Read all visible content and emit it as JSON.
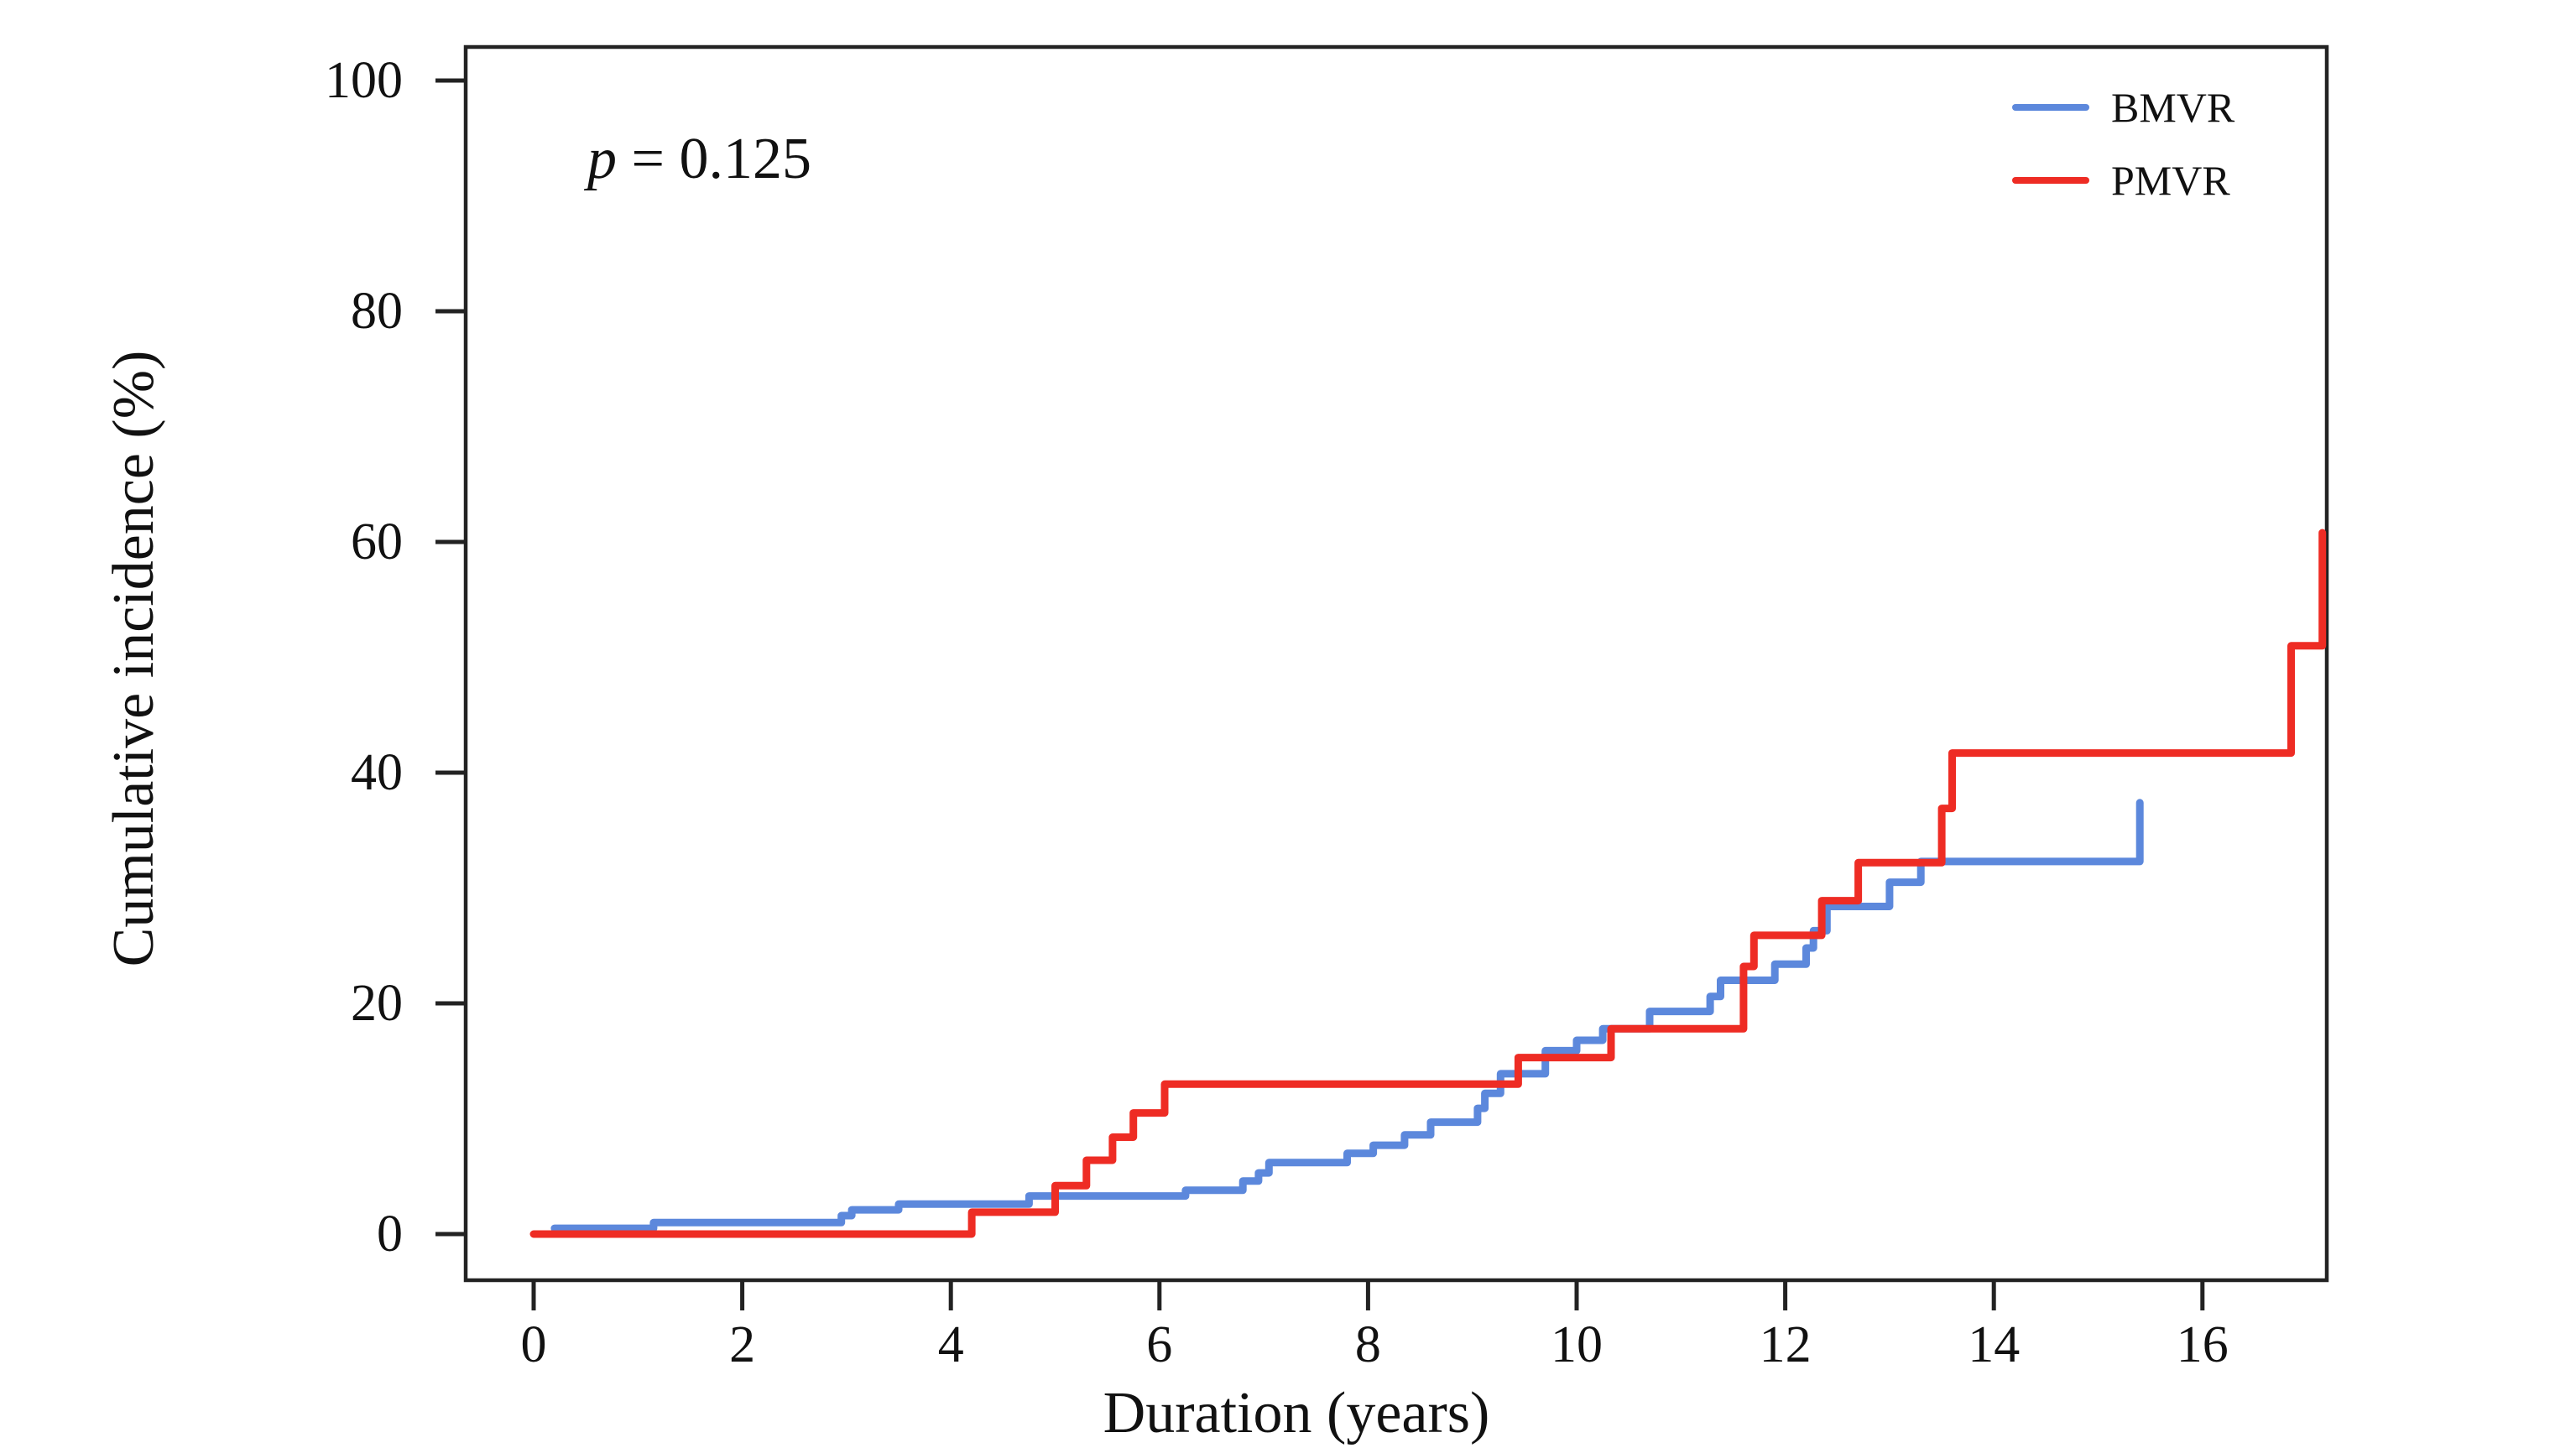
{
  "figure": {
    "annotation": {
      "symbol": "p",
      "rest": " = 0.125",
      "full": "p = 0.125"
    },
    "x_axis": {
      "label": "Duration (years)",
      "ticks": [
        "0",
        "2",
        "4",
        "6",
        "8",
        "10",
        "12",
        "14",
        "16"
      ]
    },
    "y_axis": {
      "label": "Cumulative incidence (%)",
      "ticks": [
        "0",
        "20",
        "40",
        "60",
        "80",
        "100"
      ]
    },
    "legend": [
      {
        "label": "BMVR",
        "color": "#5c88dc"
      },
      {
        "label": "PMVR",
        "color": "#ee2c24"
      }
    ],
    "frame_color": "#222222"
  },
  "chart_data": {
    "type": "line",
    "subtype": "step-post",
    "title": "",
    "xlabel": "Duration (years)",
    "ylabel": "Cumulative incidence (%)",
    "annotation": "p = 0.125",
    "xlim": [
      -0.65,
      17.2
    ],
    "ylim": [
      -4,
      103
    ],
    "x_ticks": [
      0,
      2,
      4,
      6,
      8,
      10,
      12,
      14,
      16
    ],
    "y_ticks": [
      0,
      20,
      40,
      60,
      80,
      100
    ],
    "grid": false,
    "legend_position": "top-right",
    "series": [
      {
        "name": "BMVR",
        "color": "#5c88dc",
        "points": [
          [
            0.2,
            0.5
          ],
          [
            1.15,
            1.0
          ],
          [
            2.95,
            1.6
          ],
          [
            3.05,
            2.1
          ],
          [
            3.5,
            2.6
          ],
          [
            4.75,
            3.3
          ],
          [
            6.25,
            3.8
          ],
          [
            6.8,
            4.6
          ],
          [
            6.95,
            5.3
          ],
          [
            7.05,
            6.2
          ],
          [
            7.8,
            7.0
          ],
          [
            8.05,
            7.7
          ],
          [
            8.35,
            8.6
          ],
          [
            8.6,
            9.7
          ],
          [
            9.05,
            10.9
          ],
          [
            9.12,
            12.2
          ],
          [
            9.27,
            13.9
          ],
          [
            9.7,
            15.9
          ],
          [
            10.0,
            16.8
          ],
          [
            10.25,
            17.8
          ],
          [
            10.7,
            19.3
          ],
          [
            11.28,
            20.6
          ],
          [
            11.38,
            22.0
          ],
          [
            11.9,
            23.4
          ],
          [
            12.2,
            24.8
          ],
          [
            12.27,
            26.3
          ],
          [
            12.4,
            28.4
          ],
          [
            13.0,
            30.5
          ],
          [
            13.3,
            32.3
          ],
          [
            15.4,
            37.4
          ]
        ]
      },
      {
        "name": "PMVR",
        "color": "#ee2c24",
        "points": [
          [
            0.0,
            0.0
          ],
          [
            4.2,
            1.9
          ],
          [
            5.0,
            4.2
          ],
          [
            5.3,
            6.4
          ],
          [
            5.55,
            8.4
          ],
          [
            5.75,
            10.5
          ],
          [
            6.05,
            13.0
          ],
          [
            9.44,
            15.3
          ],
          [
            10.33,
            17.8
          ],
          [
            11.6,
            23.2
          ],
          [
            11.7,
            25.9
          ],
          [
            12.35,
            28.9
          ],
          [
            12.7,
            32.2
          ],
          [
            13.5,
            36.9
          ],
          [
            13.6,
            41.7
          ],
          [
            16.85,
            51.0
          ],
          [
            17.15,
            60.8
          ]
        ]
      }
    ]
  }
}
